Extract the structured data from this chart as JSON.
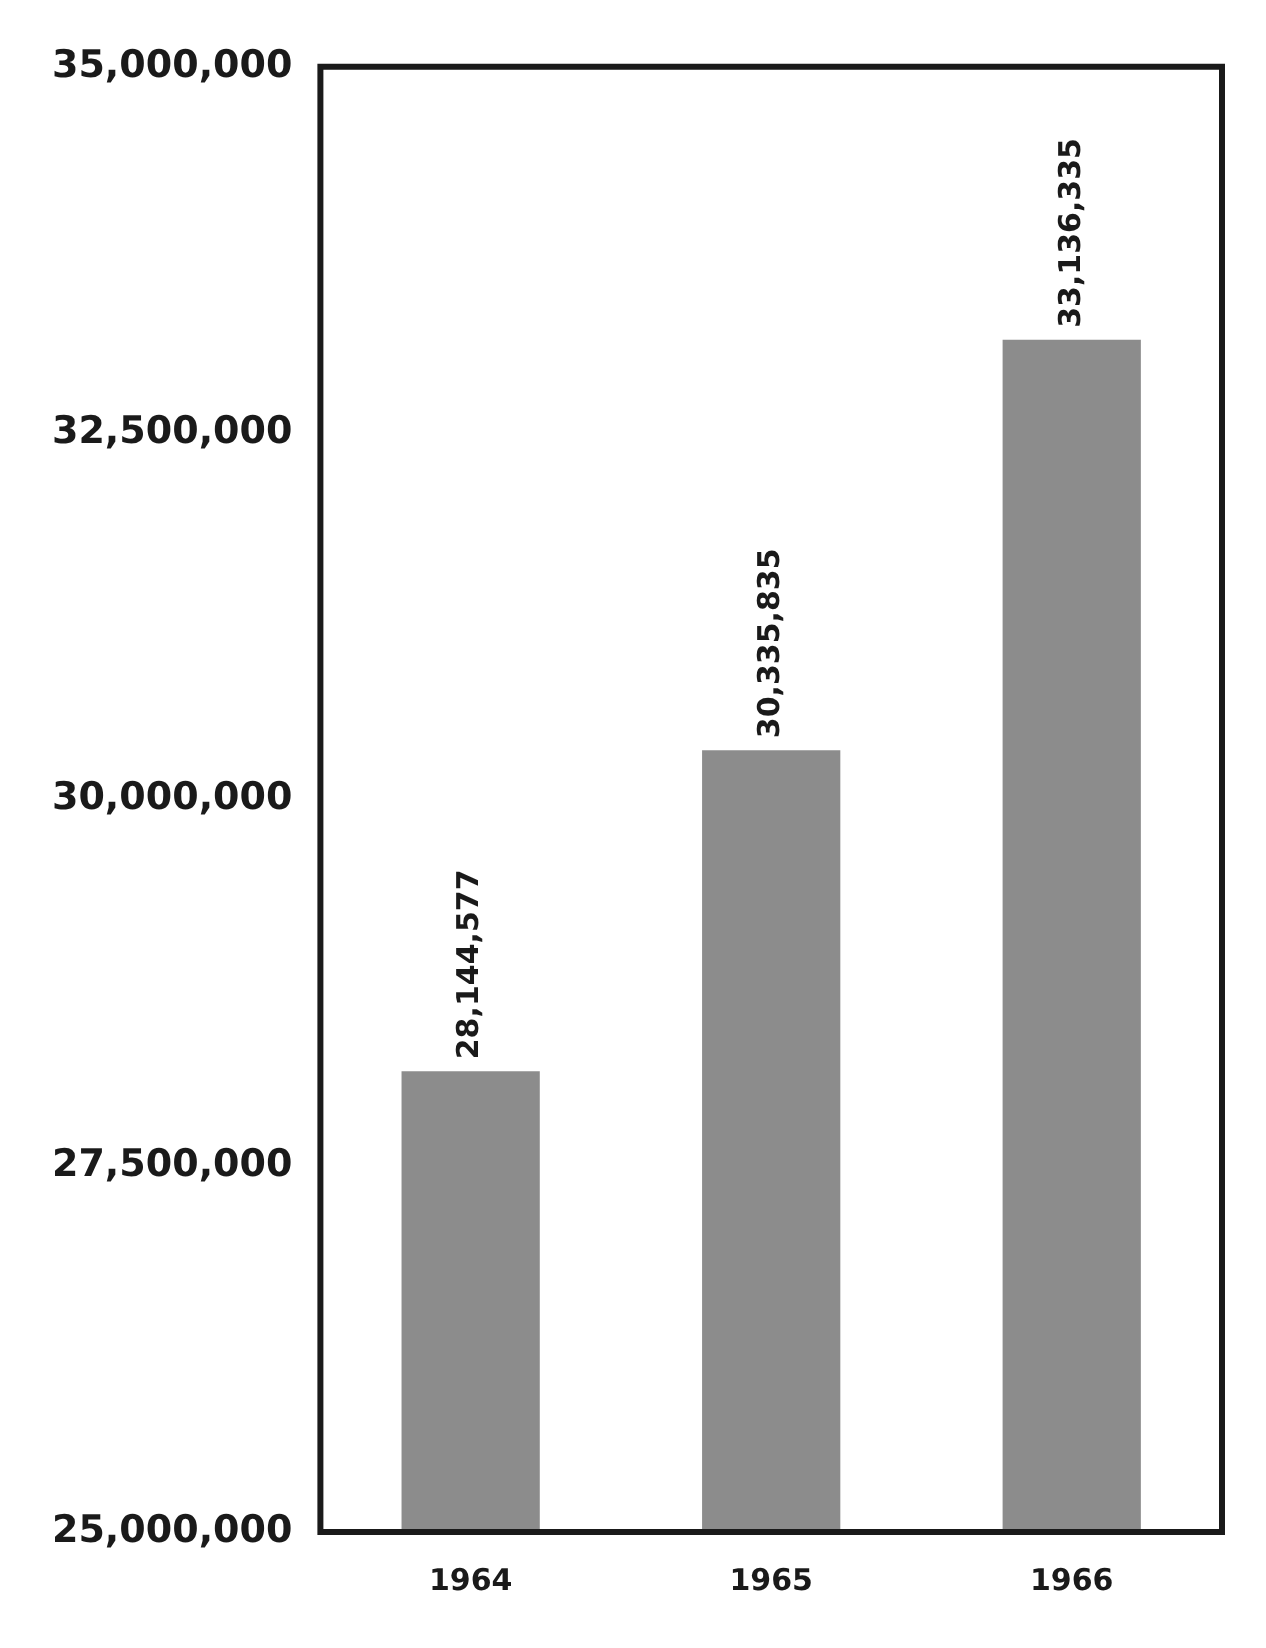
{
  "chart_data": {
    "type": "bar",
    "categories": [
      "1964",
      "1965",
      "1966"
    ],
    "values": [
      28144577,
      30335835,
      33136335
    ],
    "value_labels": [
      "28,144,577",
      "30,335,835",
      "33,136,335"
    ],
    "color": "#8c8c8c",
    "ylim": [
      25000000,
      35000000
    ],
    "yticks": [
      {
        "value": 25000000,
        "label": "25,000,000"
      },
      {
        "value": 27500000,
        "label": "27,500,000"
      },
      {
        "value": 30000000,
        "label": "30,000,000"
      },
      {
        "value": 32500000,
        "label": "32,500,000"
      },
      {
        "value": 35000000,
        "label": "35,000,000"
      }
    ],
    "grid": false,
    "legend": false
  }
}
